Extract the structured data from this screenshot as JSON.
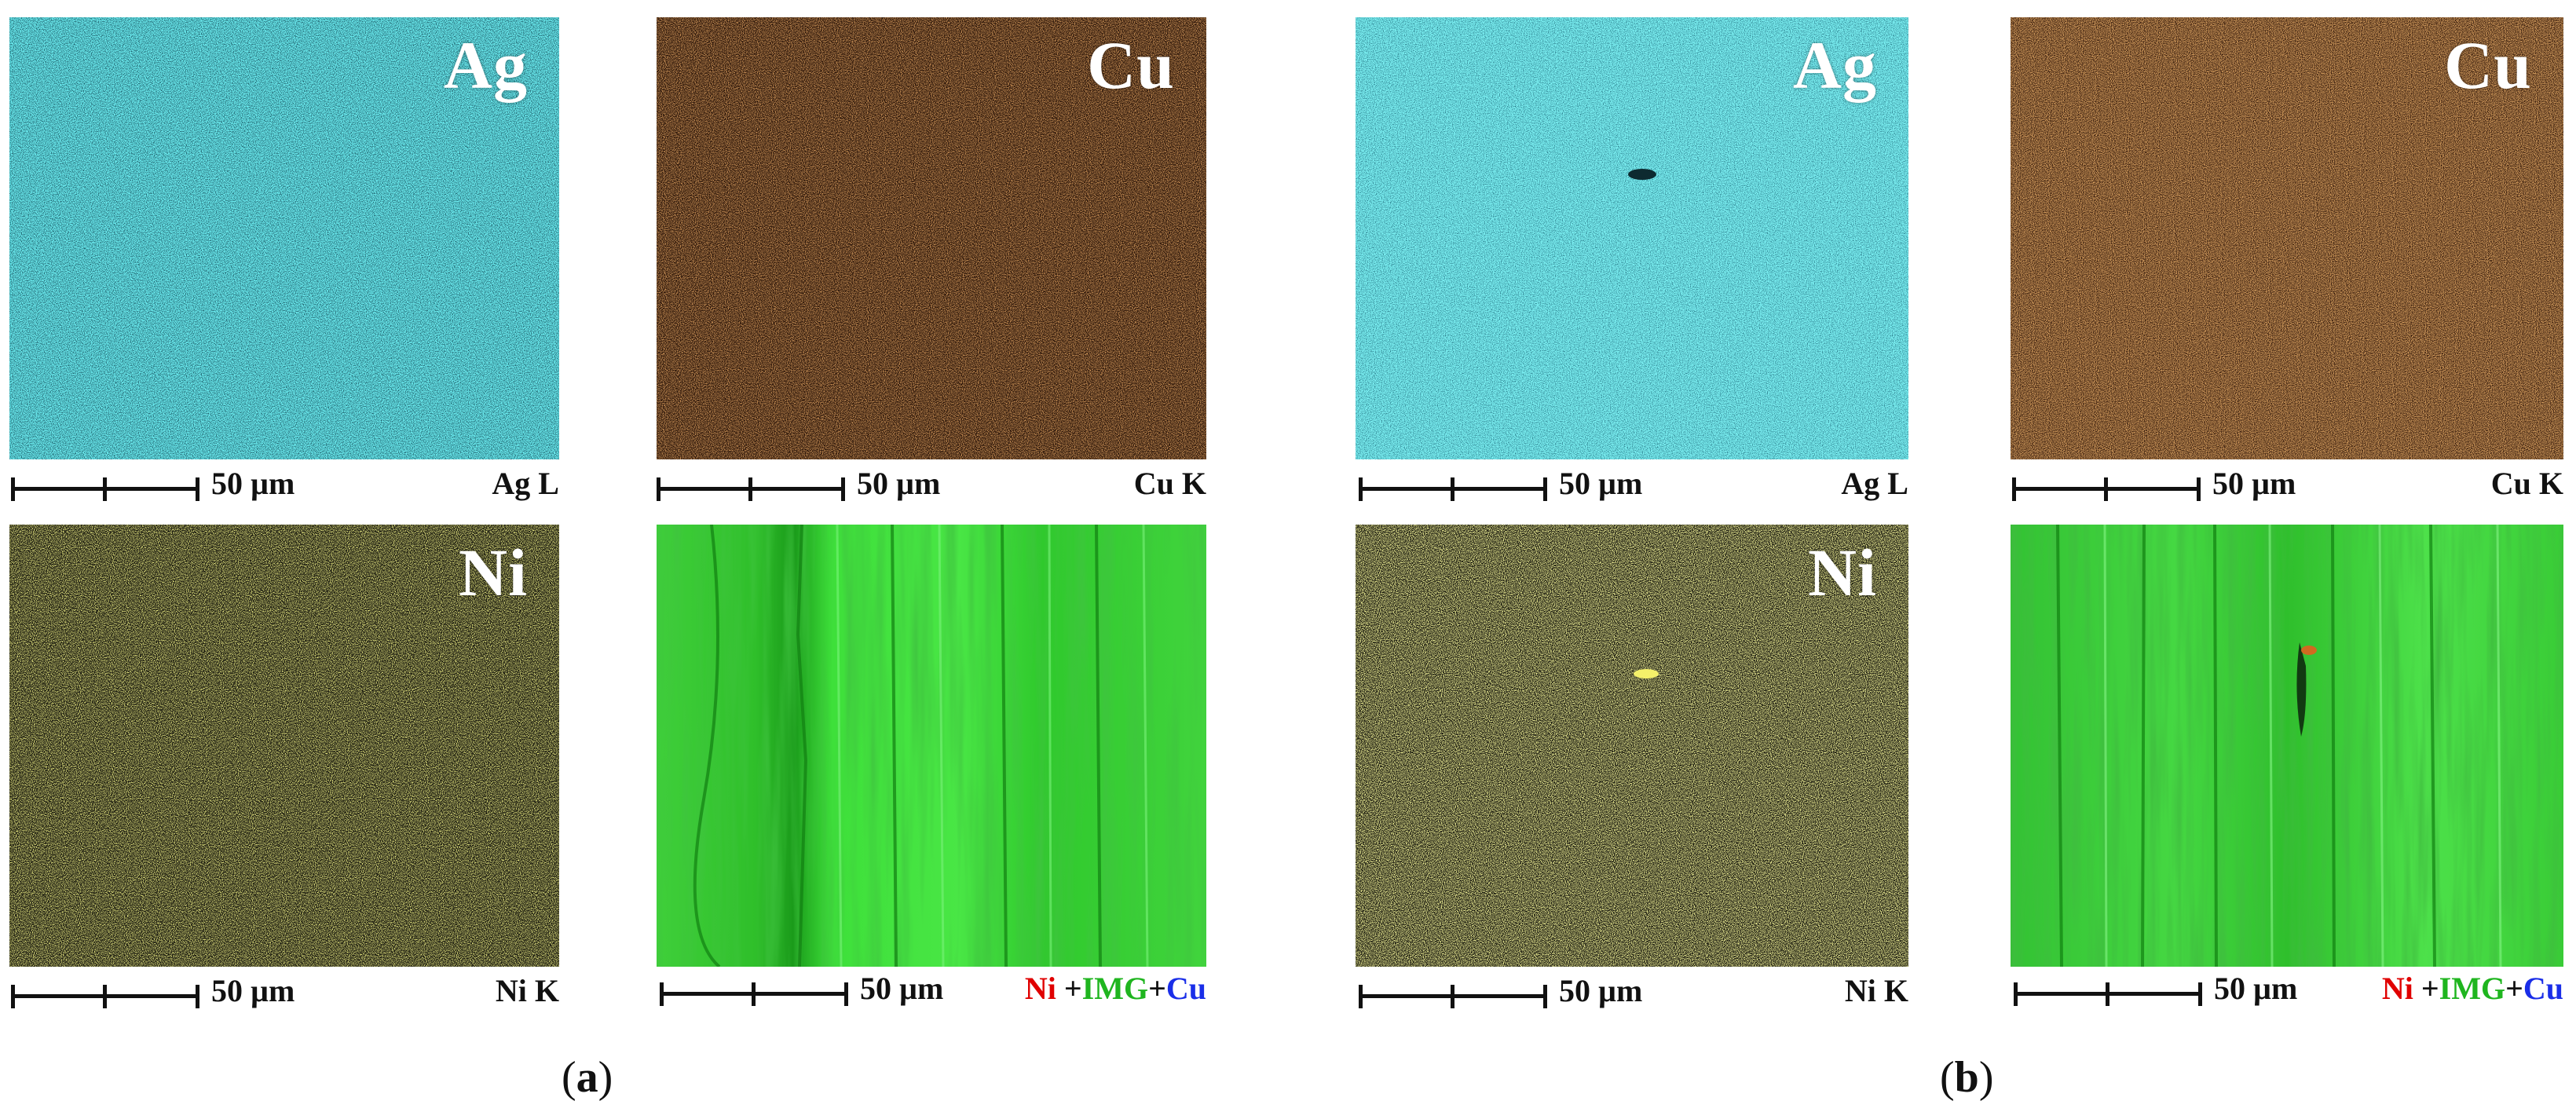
{
  "panels": [
    {
      "id": "a",
      "label_open": "(",
      "label_letter": "a",
      "label_close": ")",
      "maps": [
        {
          "element": "Ag",
          "line": "Ag L",
          "scale": "50 µm",
          "color": "#38d4d8"
        },
        {
          "element": "Cu",
          "line": "Cu K",
          "scale": "50 µm",
          "color": "#7a3a10"
        },
        {
          "element": "Ni",
          "line": "Ni K",
          "scale": "50 µm",
          "color": "#bdbd3a"
        },
        {
          "element": "",
          "scale": "50 µm",
          "overlay": {
            "ni": "Ni",
            "plus1": " +",
            "img": "IMG",
            "plus2": "+",
            "cu": "Cu"
          },
          "color": "#2ed42e"
        }
      ]
    },
    {
      "id": "b",
      "label_open": "(",
      "label_letter": "b",
      "label_close": ")",
      "maps": [
        {
          "element": "Ag",
          "line": "Ag L",
          "scale": "50 µm",
          "color": "#38d4d8"
        },
        {
          "element": "Cu",
          "line": "Cu K",
          "scale": "50 µm",
          "color": "#8a4618"
        },
        {
          "element": "Ni",
          "line": "Ni K",
          "scale": "50 µm",
          "color": "#c8c840"
        },
        {
          "element": "",
          "scale": "50 µm",
          "overlay": {
            "ni": "Ni",
            "plus1": " +",
            "img": "IMG",
            "plus2": "+",
            "cu": "Cu"
          },
          "color": "#2ed42e"
        }
      ]
    }
  ]
}
